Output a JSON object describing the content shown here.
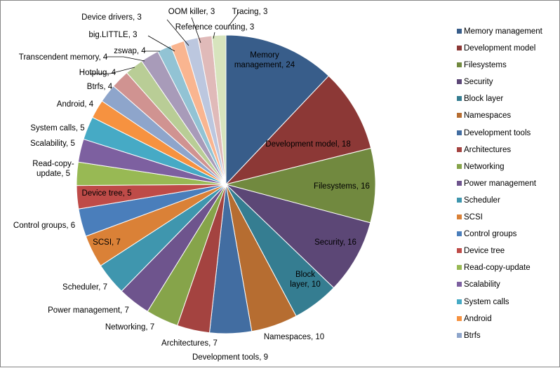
{
  "chart_data": {
    "type": "pie",
    "slices": [
      {
        "name": "Memory management",
        "value": 24,
        "label_lines": [
          "Memory",
          "management, 24"
        ],
        "color": "#385D8A"
      },
      {
        "name": "Development model",
        "value": 18,
        "label_lines": [
          "Development model, 18"
        ],
        "color": "#8C3836"
      },
      {
        "name": "Filesystems",
        "value": 16,
        "label_lines": [
          "Filesystems, 16"
        ],
        "color": "#71893F"
      },
      {
        "name": "Security",
        "value": 16,
        "label_lines": [
          "Security, 16"
        ],
        "color": "#5C4776"
      },
      {
        "name": "Block layer",
        "value": 10,
        "label_lines": [
          "Block",
          "layer, 10"
        ],
        "color": "#357D91"
      },
      {
        "name": "Namespaces",
        "value": 10,
        "label_lines": [
          "Namespaces, 10"
        ],
        "color": "#B66D31"
      },
      {
        "name": "Development tools",
        "value": 9,
        "label_lines": [
          "Development tools, 9"
        ],
        "color": "#426DA1"
      },
      {
        "name": "Architectures",
        "value": 7,
        "label_lines": [
          "Architectures, 7"
        ],
        "color": "#A44340"
      },
      {
        "name": "Networking",
        "value": 7,
        "label_lines": [
          "Networking, 7"
        ],
        "color": "#86A44A"
      },
      {
        "name": "Power management",
        "value": 7,
        "label_lines": [
          "Power management,  7"
        ],
        "color": "#6E548D"
      },
      {
        "name": "Scheduler",
        "value": 7,
        "label_lines": [
          "Scheduler, 7"
        ],
        "color": "#3F96AE"
      },
      {
        "name": "SCSI",
        "value": 7,
        "label_lines": [
          "SCSI, 7"
        ],
        "color": "#DA8137"
      },
      {
        "name": "Control groups",
        "value": 6,
        "label_lines": [
          "Control groups, 6"
        ],
        "color": "#4A7EBB"
      },
      {
        "name": "Device tree",
        "value": 5,
        "label_lines": [
          "Device tree, 5"
        ],
        "color": "#BE4B48"
      },
      {
        "name": "Read-copy-update",
        "value": 5,
        "label_lines": [
          "Read-copy-",
          "update, 5"
        ],
        "color": "#98B954"
      },
      {
        "name": "Scalability",
        "value": 5,
        "label_lines": [
          "Scalability, 5"
        ],
        "color": "#7D60A0"
      },
      {
        "name": "System calls",
        "value": 5,
        "label_lines": [
          "System calls, 5"
        ],
        "color": "#46AAC5"
      },
      {
        "name": "Android",
        "value": 4,
        "label_lines": [
          "Android, 4"
        ],
        "color": "#F69240"
      },
      {
        "name": "Btrfs",
        "value": 4,
        "label_lines": [
          "Btrfs, 4"
        ],
        "color": "#8EA5CB"
      },
      {
        "name": "Hotplug",
        "value": 4,
        "label_lines": [
          "Hotplug, 4"
        ],
        "color": "#D09391"
      },
      {
        "name": "Transcendent memory",
        "value": 4,
        "label_lines": [
          "Transcendent memory, 4"
        ],
        "color": "#B9CD96"
      },
      {
        "name": "zswap",
        "value": 4,
        "label_lines": [
          "zswap, 4"
        ],
        "color": "#A89BB9"
      },
      {
        "name": "big.LITTLE",
        "value": 3,
        "label_lines": [
          "big.LITTLE, 3"
        ],
        "color": "#92C3D4"
      },
      {
        "name": "Device drivers",
        "value": 3,
        "label_lines": [
          "Device drivers, 3"
        ],
        "color": "#F9B590"
      },
      {
        "name": "OOM killer",
        "value": 3,
        "label_lines": [
          "OOM killer, 3"
        ],
        "color": "#BCC7DF"
      },
      {
        "name": "Reference counting",
        "value": 3,
        "label_lines": [
          "Reference counting, 3"
        ],
        "color": "#E0BAB9"
      },
      {
        "name": "Tracing",
        "value": 3,
        "label_lines": [
          "Tracing, 3"
        ],
        "color": "#D7E4BD"
      }
    ],
    "legend": {
      "placement": "right",
      "items": [
        "Memory management",
        "Development model",
        "Filesystems",
        "Security",
        "Block layer",
        "Namespaces",
        "Development tools",
        "Architectures",
        "Networking",
        "Power management",
        "Scheduler",
        "SCSI",
        "Control groups",
        "Device tree",
        "Read-copy-update",
        "Scalability",
        "System calls",
        "Android",
        "Btrfs"
      ]
    }
  }
}
